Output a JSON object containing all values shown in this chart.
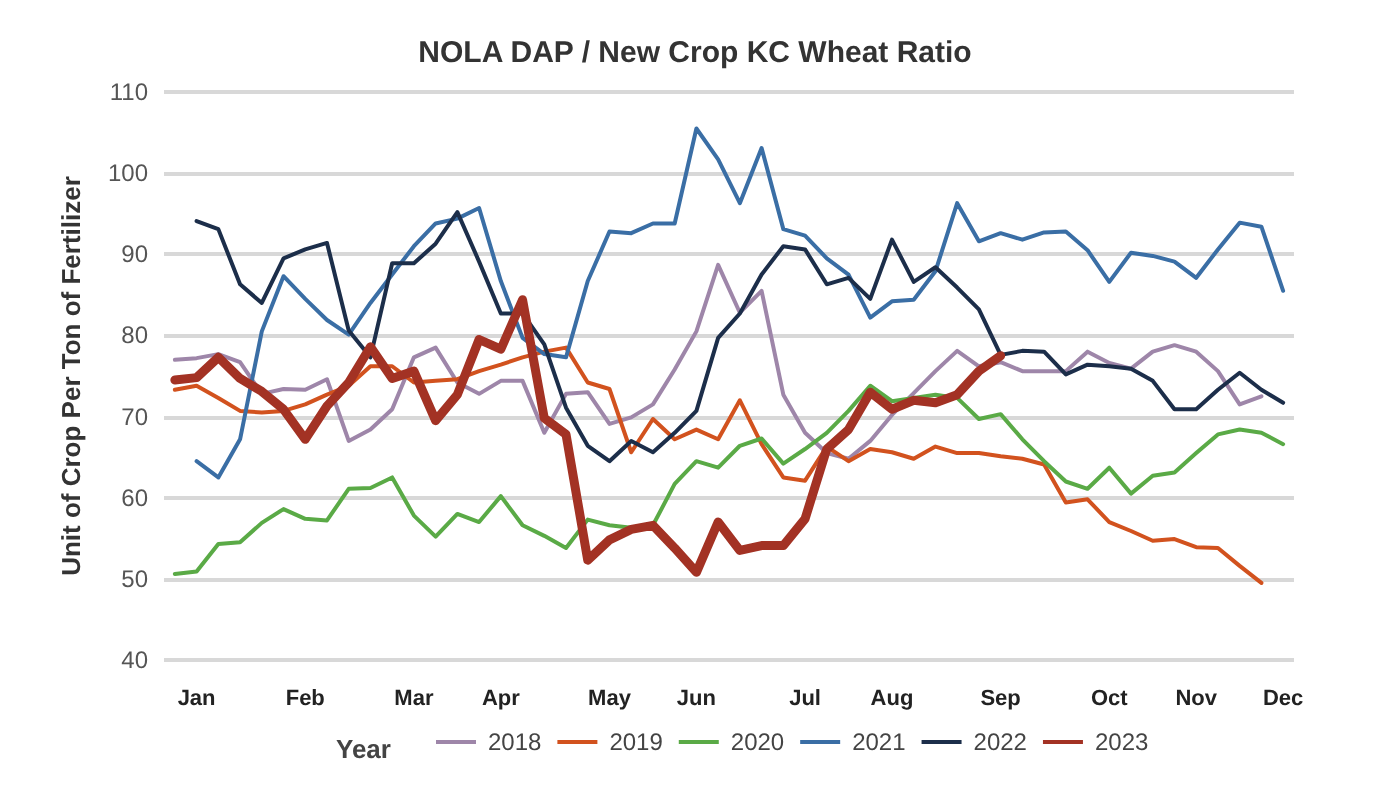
{
  "chart_data": {
    "type": "line",
    "title": "NOLA DAP / New Crop KC Wheat Ratio",
    "ylabel": "Unit of Crop Per Ton of Fertilizer",
    "legend_title": "Year",
    "categories": [
      null,
      "Jan",
      null,
      null,
      null,
      null,
      "Feb",
      null,
      null,
      null,
      null,
      "Mar",
      null,
      null,
      null,
      "Apr",
      null,
      null,
      null,
      null,
      "May",
      null,
      null,
      null,
      "Jun",
      null,
      null,
      null,
      null,
      "Jul",
      null,
      null,
      null,
      "Aug",
      null,
      null,
      null,
      null,
      "Sep",
      null,
      null,
      null,
      null,
      "Oct",
      null,
      null,
      null,
      "Nov",
      null,
      null,
      null,
      "Dec"
    ],
    "ylim": [
      40,
      110
    ],
    "yticks": [
      40,
      50,
      60,
      70,
      80,
      90,
      100,
      110
    ],
    "grid": "y",
    "legend": "bottom",
    "marker": "none",
    "line_style": "solid",
    "series": [
      {
        "name": "2018",
        "color": "#9e86a9",
        "values": [
          77.0,
          77.2,
          77.7,
          76.7,
          72.8,
          73.4,
          73.3,
          74.6,
          67.0,
          68.4,
          70.9,
          77.3,
          78.5,
          74.2,
          72.8,
          74.4,
          74.4,
          68.0,
          72.8,
          73.0,
          69.1,
          69.9,
          71.5,
          75.8,
          80.5,
          88.7,
          82.8,
          85.5,
          72.7,
          68.0,
          65.5,
          64.8,
          67.0,
          70.2,
          72.9,
          75.6,
          78.1,
          76.2,
          76.7,
          75.6,
          75.6,
          75.6,
          78.0,
          76.6,
          75.9,
          78.0,
          78.8,
          78.0,
          75.6,
          71.5,
          72.5,
          null
        ]
      },
      {
        "name": "2019",
        "color": "#d2521e",
        "values": [
          73.3,
          73.8,
          72.3,
          70.7,
          70.5,
          70.7,
          71.5,
          72.7,
          73.8,
          76.2,
          76.2,
          74.2,
          74.4,
          74.6,
          75.6,
          76.4,
          77.3,
          78.0,
          78.5,
          74.2,
          73.4,
          65.6,
          69.7,
          67.2,
          68.4,
          67.2,
          72.0,
          66.6,
          62.5,
          62.1,
          66.3,
          64.5,
          66.0,
          65.6,
          64.8,
          66.3,
          65.5,
          65.5,
          65.1,
          64.8,
          64.1,
          59.4,
          59.8,
          57.0,
          55.9,
          54.7,
          54.9,
          53.9,
          53.8,
          51.6,
          49.5,
          null
        ]
      },
      {
        "name": "2020",
        "color": "#5aaa46",
        "values": [
          50.6,
          50.9,
          54.3,
          54.5,
          56.9,
          58.6,
          57.4,
          57.2,
          61.1,
          61.2,
          62.5,
          57.8,
          55.2,
          58.0,
          57.0,
          60.2,
          56.6,
          55.3,
          53.8,
          57.3,
          56.6,
          56.3,
          56.6,
          61.7,
          64.5,
          63.7,
          66.4,
          67.3,
          64.2,
          66.0,
          68.0,
          70.7,
          73.8,
          71.9,
          72.3,
          72.7,
          72.3,
          69.7,
          70.3,
          67.2,
          64.5,
          62.0,
          61.1,
          63.7,
          60.5,
          62.7,
          63.1,
          65.5,
          67.8,
          68.4,
          68.0,
          66.6
        ]
      },
      {
        "name": "2021",
        "color": "#3a6ea5",
        "values": [
          null,
          64.5,
          62.5,
          67.2,
          80.5,
          87.3,
          84.5,
          81.9,
          80.1,
          84.0,
          87.5,
          91.0,
          93.8,
          94.4,
          95.7,
          86.7,
          79.7,
          77.7,
          77.3,
          86.7,
          92.8,
          92.6,
          93.8,
          93.8,
          105.5,
          101.7,
          96.3,
          103.1,
          93.1,
          92.3,
          89.5,
          87.5,
          82.2,
          84.2,
          84.4,
          87.9,
          96.3,
          91.6,
          92.6,
          91.8,
          92.7,
          92.8,
          90.5,
          86.6,
          90.2,
          89.8,
          89.1,
          87.1,
          90.6,
          93.9,
          93.4,
          85.5
        ]
      },
      {
        "name": "2022",
        "color": "#1c2e4a",
        "values": [
          null,
          94.1,
          93.1,
          86.3,
          84.0,
          89.5,
          90.6,
          91.4,
          80.6,
          77.3,
          88.9,
          88.9,
          91.3,
          95.2,
          89.1,
          82.7,
          82.7,
          78.9,
          71.1,
          66.4,
          64.5,
          67.0,
          65.6,
          68.0,
          70.7,
          79.7,
          82.7,
          87.5,
          91.0,
          90.6,
          86.3,
          87.1,
          84.5,
          91.8,
          86.6,
          88.4,
          85.9,
          83.2,
          77.6,
          78.1,
          78.0,
          75.2,
          76.4,
          76.2,
          75.9,
          74.4,
          70.9,
          70.9,
          73.3,
          75.4,
          73.3,
          71.7
        ]
      },
      {
        "name": "2023",
        "color": "#a33224",
        "values": [
          74.5,
          74.8,
          77.3,
          74.7,
          73.1,
          70.9,
          67.2,
          71.3,
          74.2,
          78.6,
          74.7,
          75.6,
          69.5,
          72.7,
          79.5,
          78.3,
          84.4,
          69.8,
          67.8,
          52.3,
          54.8,
          56.1,
          56.6,
          53.8,
          50.8,
          57.0,
          53.5,
          54.1,
          54.1,
          57.4,
          66.0,
          68.4,
          73.0,
          70.9,
          72.0,
          71.7,
          72.7,
          75.6,
          77.5,
          null,
          null,
          null,
          null,
          null,
          null,
          null,
          null,
          null,
          null,
          null,
          null,
          null
        ]
      }
    ]
  }
}
